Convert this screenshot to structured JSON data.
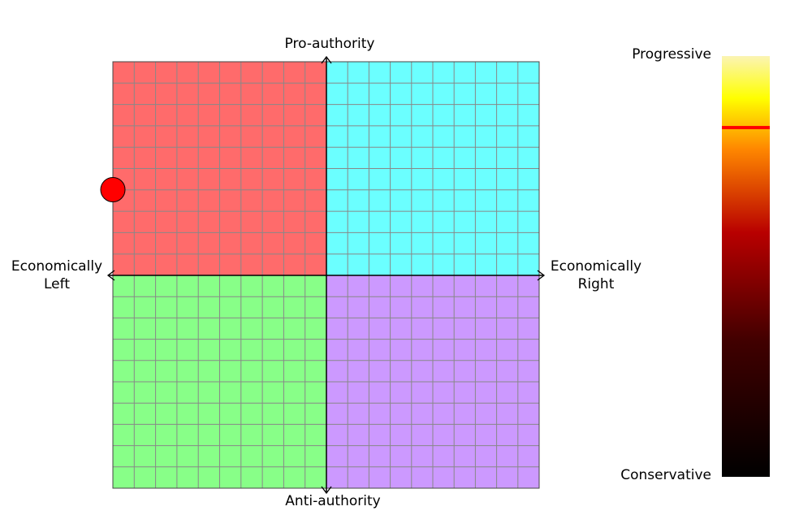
{
  "chart_data": {
    "type": "scatter",
    "title": "",
    "labels": {
      "top": "Pro-authority",
      "bottom": "Anti-authority",
      "left_line1": "Economically",
      "left_line2": "Left",
      "right_line1": "Economically",
      "right_line2": "Right"
    },
    "xlim": [
      -10,
      10
    ],
    "ylim": [
      -10,
      10
    ],
    "grid": true,
    "grid_divisions": 10,
    "quadrants": [
      {
        "name": "authoritarian-left",
        "color": "#ff6b6b"
      },
      {
        "name": "authoritarian-right",
        "color": "#6bffff"
      },
      {
        "name": "libertarian-left",
        "color": "#88ff88"
      },
      {
        "name": "libertarian-right",
        "color": "#cc99ff"
      }
    ],
    "point": {
      "x": -10,
      "y": 4,
      "color": "#ff0000"
    },
    "social_scale": {
      "top_label": "Progressive",
      "bottom_label": "Conservative",
      "value": 0.83,
      "marker_color": "#ff0000",
      "gradient": [
        "#fbf4b4",
        "#ffff00",
        "#ff8800",
        "#b80000",
        "#400000",
        "#000000"
      ]
    }
  }
}
